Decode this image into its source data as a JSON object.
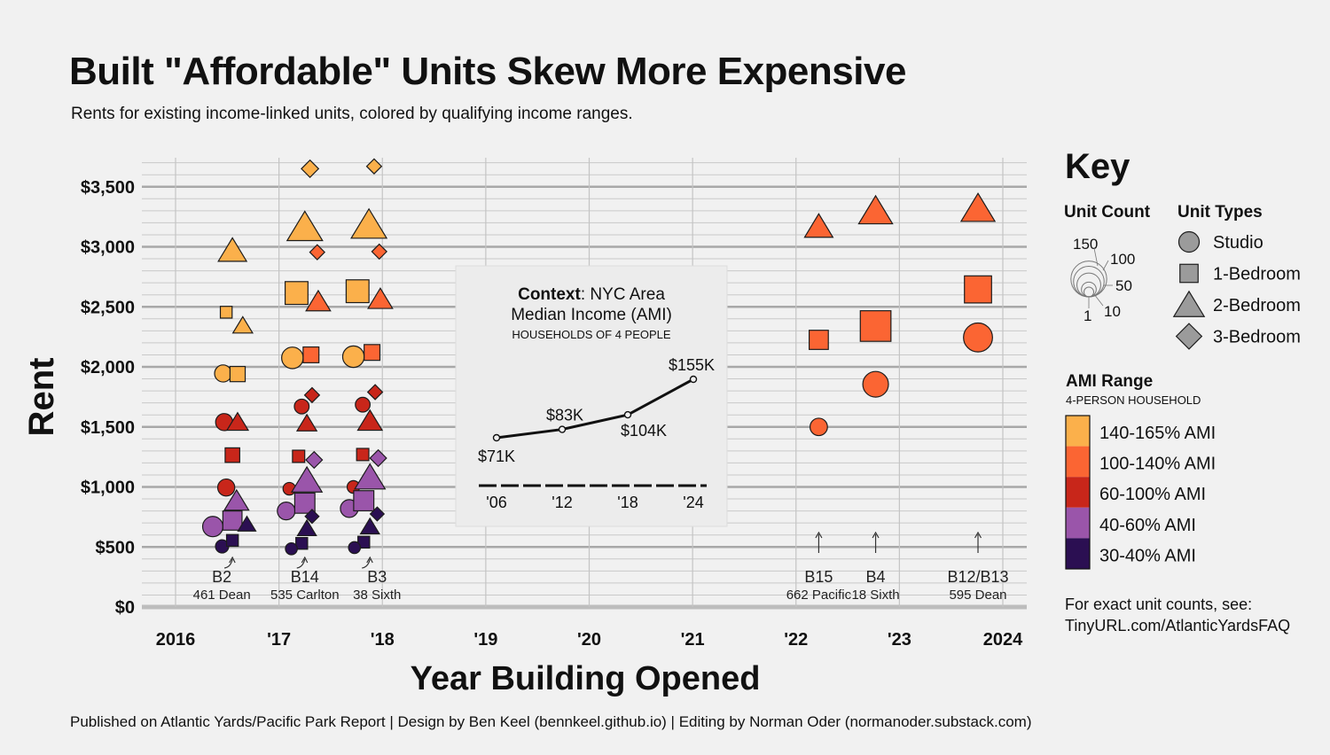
{
  "title": "Built \"Affordable\" Units Skew More Expensive",
  "subtitle": "Rents for existing income-linked units, colored by qualifying income ranges.",
  "footer": "Published on Atlantic Yards/Pacific Park Report | Design by Ben Keel (bennkeel.github.io) | Editing by Norman Oder (normanoder.substack.com)",
  "colors": {
    "ami_140_165": "#fbb04b",
    "ami_100_140": "#fb6533",
    "ami_60_100": "#c8261a",
    "ami_40_60": "#9a55aa",
    "ami_30_40": "#2b0f52",
    "background": "#f1f1f1",
    "inset_background": "#eeeeee"
  },
  "chart_data": {
    "type": "scatter",
    "xlabel": "Year Building Opened",
    "ylabel": "Rent",
    "x_ticks": [
      "2016",
      "'17",
      "'18",
      "'19",
      "'20",
      "'21",
      "'22",
      "'23",
      "2024"
    ],
    "xlim": [
      2016.0,
      2024.0
    ],
    "y_ticks": [
      "$0",
      "$500",
      "$1,000",
      "$1,500",
      "$2,000",
      "$2,500",
      "$3,000",
      "$3,500"
    ],
    "y_tick_values": [
      0,
      500,
      1000,
      1500,
      2000,
      2500,
      3000,
      3500
    ],
    "ylim": [
      0,
      3500
    ],
    "grid": true,
    "buildings": [
      {
        "code": "B2",
        "address": "461 Dean",
        "x": 2016.55
      },
      {
        "code": "B14",
        "address": "535 Carlton",
        "x": 2017.25
      },
      {
        "code": "B3",
        "address": "38 Sixth",
        "x": 2017.88
      },
      {
        "code": "B15",
        "address": "662 Pacific",
        "x": 2022.22
      },
      {
        "code": "B4",
        "address": "18 Sixth",
        "x": 2022.77
      },
      {
        "code": "B12/B13",
        "address": "595 Dean",
        "x": 2023.76
      }
    ],
    "points": [
      {
        "building": "B2",
        "x": 2016.55,
        "y": 2970,
        "type": "2-Bedroom",
        "ami": "140-165% AMI",
        "units": 20
      },
      {
        "building": "B2",
        "x": 2016.49,
        "y": 2455,
        "type": "1-Bedroom",
        "ami": "140-165% AMI",
        "units": 5
      },
      {
        "building": "B2",
        "x": 2016.65,
        "y": 2345,
        "type": "2-Bedroom",
        "ami": "140-165% AMI",
        "units": 5
      },
      {
        "building": "B2",
        "x": 2016.46,
        "y": 1945,
        "type": "Studio",
        "ami": "140-165% AMI",
        "units": 14
      },
      {
        "building": "B2",
        "x": 2016.6,
        "y": 1940,
        "type": "1-Bedroom",
        "ami": "140-165% AMI",
        "units": 14
      },
      {
        "building": "B2",
        "x": 2016.47,
        "y": 1540,
        "type": "Studio",
        "ami": "60-100% AMI",
        "units": 14
      },
      {
        "building": "B2",
        "x": 2016.6,
        "y": 1540,
        "type": "2-Bedroom",
        "ami": "60-100% AMI",
        "units": 7
      },
      {
        "building": "B2",
        "x": 2016.55,
        "y": 1265,
        "type": "1-Bedroom",
        "ami": "60-100% AMI",
        "units": 12
      },
      {
        "building": "B2",
        "x": 2016.49,
        "y": 995,
        "type": "Studio",
        "ami": "60-100% AMI",
        "units": 14
      },
      {
        "building": "B2",
        "x": 2016.59,
        "y": 885,
        "type": "2-Bedroom",
        "ami": "40-60% AMI",
        "units": 12
      },
      {
        "building": "B2",
        "x": 2016.36,
        "y": 670,
        "type": "Studio",
        "ami": "40-60% AMI",
        "units": 25
      },
      {
        "building": "B2",
        "x": 2016.55,
        "y": 720,
        "type": "1-Bedroom",
        "ami": "40-60% AMI",
        "units": 30
      },
      {
        "building": "B2",
        "x": 2016.69,
        "y": 690,
        "type": "2-Bedroom",
        "ami": "30-40% AMI",
        "units": 3
      },
      {
        "building": "B2",
        "x": 2016.45,
        "y": 505,
        "type": "Studio",
        "ami": "30-40% AMI",
        "units": 5
      },
      {
        "building": "B2",
        "x": 2016.55,
        "y": 555,
        "type": "1-Bedroom",
        "ami": "30-40% AMI",
        "units": 5
      },
      {
        "building": "B14",
        "x": 2017.3,
        "y": 3650,
        "type": "3-Bedroom",
        "ami": "140-165% AMI",
        "units": 6
      },
      {
        "building": "B14",
        "x": 2017.25,
        "y": 3165,
        "type": "2-Bedroom",
        "ami": "140-165% AMI",
        "units": 40
      },
      {
        "building": "B14",
        "x": 2017.37,
        "y": 2955,
        "type": "3-Bedroom",
        "ami": "100-140% AMI",
        "units": 3
      },
      {
        "building": "B14",
        "x": 2017.17,
        "y": 2615,
        "type": "1-Bedroom",
        "ami": "140-165% AMI",
        "units": 50
      },
      {
        "building": "B14",
        "x": 2017.38,
        "y": 2545,
        "type": "2-Bedroom",
        "ami": "100-140% AMI",
        "units": 12
      },
      {
        "building": "B14",
        "x": 2017.13,
        "y": 2075,
        "type": "Studio",
        "ami": "140-165% AMI",
        "units": 30
      },
      {
        "building": "B14",
        "x": 2017.31,
        "y": 2100,
        "type": "1-Bedroom",
        "ami": "100-140% AMI",
        "units": 16
      },
      {
        "building": "B14",
        "x": 2017.32,
        "y": 1765,
        "type": "3-Bedroom",
        "ami": "60-100% AMI",
        "units": 3
      },
      {
        "building": "B14",
        "x": 2017.22,
        "y": 1670,
        "type": "Studio",
        "ami": "60-100% AMI",
        "units": 8
      },
      {
        "building": "B14",
        "x": 2017.27,
        "y": 1530,
        "type": "2-Bedroom",
        "ami": "60-100% AMI",
        "units": 5
      },
      {
        "building": "B14",
        "x": 2017.19,
        "y": 1255,
        "type": "1-Bedroom",
        "ami": "60-100% AMI",
        "units": 6
      },
      {
        "building": "B14",
        "x": 2017.34,
        "y": 1225,
        "type": "3-Bedroom",
        "ami": "40-60% AMI",
        "units": 5
      },
      {
        "building": "B14",
        "x": 2017.1,
        "y": 985,
        "type": "Studio",
        "ami": "60-100% AMI",
        "units": 4
      },
      {
        "building": "B14",
        "x": 2017.27,
        "y": 1055,
        "type": "2-Bedroom",
        "ami": "40-60% AMI",
        "units": 25
      },
      {
        "building": "B14",
        "x": 2017.07,
        "y": 800,
        "type": "Studio",
        "ami": "40-60% AMI",
        "units": 16
      },
      {
        "building": "B14",
        "x": 2017.25,
        "y": 865,
        "type": "1-Bedroom",
        "ami": "40-60% AMI",
        "units": 35
      },
      {
        "building": "B14",
        "x": 2017.32,
        "y": 755,
        "type": "3-Bedroom",
        "ami": "30-40% AMI",
        "units": 2
      },
      {
        "building": "B14",
        "x": 2017.27,
        "y": 655,
        "type": "2-Bedroom",
        "ami": "30-40% AMI",
        "units": 4
      },
      {
        "building": "B14",
        "x": 2017.22,
        "y": 530,
        "type": "1-Bedroom",
        "ami": "30-40% AMI",
        "units": 5
      },
      {
        "building": "B14",
        "x": 2017.12,
        "y": 485,
        "type": "Studio",
        "ami": "30-40% AMI",
        "units": 3
      },
      {
        "building": "B3",
        "x": 2017.92,
        "y": 3670,
        "type": "3-Bedroom",
        "ami": "140-165% AMI",
        "units": 3
      },
      {
        "building": "B3",
        "x": 2017.87,
        "y": 3185,
        "type": "2-Bedroom",
        "ami": "140-165% AMI",
        "units": 40
      },
      {
        "building": "B3",
        "x": 2017.97,
        "y": 2960,
        "type": "3-Bedroom",
        "ami": "100-140% AMI",
        "units": 3
      },
      {
        "building": "B3",
        "x": 2017.76,
        "y": 2630,
        "type": "1-Bedroom",
        "ami": "140-165% AMI",
        "units": 50
      },
      {
        "building": "B3",
        "x": 2017.98,
        "y": 2565,
        "type": "2-Bedroom",
        "ami": "100-140% AMI",
        "units": 12
      },
      {
        "building": "B3",
        "x": 2017.72,
        "y": 2085,
        "type": "Studio",
        "ami": "140-165% AMI",
        "units": 30
      },
      {
        "building": "B3",
        "x": 2017.9,
        "y": 2120,
        "type": "1-Bedroom",
        "ami": "100-140% AMI",
        "units": 16
      },
      {
        "building": "B3",
        "x": 2017.93,
        "y": 1790,
        "type": "3-Bedroom",
        "ami": "60-100% AMI",
        "units": 3
      },
      {
        "building": "B3",
        "x": 2017.81,
        "y": 1685,
        "type": "Studio",
        "ami": "60-100% AMI",
        "units": 8
      },
      {
        "building": "B3",
        "x": 2017.88,
        "y": 1550,
        "type": "2-Bedroom",
        "ami": "60-100% AMI",
        "units": 12
      },
      {
        "building": "B3",
        "x": 2017.81,
        "y": 1270,
        "type": "1-Bedroom",
        "ami": "60-100% AMI",
        "units": 6
      },
      {
        "building": "B3",
        "x": 2017.96,
        "y": 1240,
        "type": "3-Bedroom",
        "ami": "40-60% AMI",
        "units": 5
      },
      {
        "building": "B3",
        "x": 2017.72,
        "y": 1000,
        "type": "Studio",
        "ami": "60-100% AMI",
        "units": 4
      },
      {
        "building": "B3",
        "x": 2017.88,
        "y": 1080,
        "type": "2-Bedroom",
        "ami": "40-60% AMI",
        "units": 25
      },
      {
        "building": "B3",
        "x": 2017.68,
        "y": 820,
        "type": "Studio",
        "ami": "40-60% AMI",
        "units": 16
      },
      {
        "building": "B3",
        "x": 2017.82,
        "y": 885,
        "type": "1-Bedroom",
        "ami": "40-60% AMI",
        "units": 35
      },
      {
        "building": "B3",
        "x": 2017.95,
        "y": 775,
        "type": "3-Bedroom",
        "ami": "30-40% AMI",
        "units": 2
      },
      {
        "building": "B3",
        "x": 2017.88,
        "y": 670,
        "type": "2-Bedroom",
        "ami": "30-40% AMI",
        "units": 4
      },
      {
        "building": "B3",
        "x": 2017.82,
        "y": 540,
        "type": "1-Bedroom",
        "ami": "30-40% AMI",
        "units": 5
      },
      {
        "building": "B3",
        "x": 2017.73,
        "y": 495,
        "type": "Studio",
        "ami": "30-40% AMI",
        "units": 3
      },
      {
        "building": "B15",
        "x": 2022.22,
        "y": 3170,
        "type": "2-Bedroom",
        "ami": "100-140% AMI",
        "units": 20
      },
      {
        "building": "B15",
        "x": 2022.22,
        "y": 2225,
        "type": "1-Bedroom",
        "ami": "100-140% AMI",
        "units": 30
      },
      {
        "building": "B15",
        "x": 2022.22,
        "y": 1500,
        "type": "Studio",
        "ami": "100-140% AMI",
        "units": 15
      },
      {
        "building": "B4",
        "x": 2022.77,
        "y": 3300,
        "type": "2-Bedroom",
        "ami": "100-140% AMI",
        "units": 35
      },
      {
        "building": "B4",
        "x": 2022.77,
        "y": 2340,
        "type": "1-Bedroom",
        "ami": "100-140% AMI",
        "units": 110
      },
      {
        "building": "B4",
        "x": 2022.77,
        "y": 1855,
        "type": "Studio",
        "ami": "100-140% AMI",
        "units": 50
      },
      {
        "building": "B12/B13",
        "x": 2023.76,
        "y": 3320,
        "type": "2-Bedroom",
        "ami": "100-140% AMI",
        "units": 35
      },
      {
        "building": "B12/B13",
        "x": 2023.76,
        "y": 2645,
        "type": "1-Bedroom",
        "ami": "100-140% AMI",
        "units": 80
      },
      {
        "building": "B12/B13",
        "x": 2023.76,
        "y": 2245,
        "type": "Studio",
        "ami": "100-140% AMI",
        "units": 70
      }
    ],
    "inset": {
      "title_bold": "Context",
      "title_rest": ": NYC Area",
      "title_line2": "Median Income (AMI)",
      "subtitle": "HOUSEHOLDS OF 4 PEOPLE",
      "type": "line",
      "x_ticks": [
        "'06",
        "'12",
        "'18",
        "'24"
      ],
      "points": [
        {
          "year": 2006,
          "value": 71,
          "label": "$71K"
        },
        {
          "year": 2012,
          "value": 83,
          "label": "$83K"
        },
        {
          "year": 2018,
          "value": 104,
          "label": "$104K"
        },
        {
          "year": 2024,
          "value": 155,
          "label": "$155K"
        }
      ]
    }
  },
  "key": {
    "title": "Key",
    "unit_count_title": "Unit Count",
    "unit_count_labels": [
      "150",
      "100",
      "50",
      "10",
      "1"
    ],
    "unit_types_title": "Unit Types",
    "unit_types": [
      "Studio",
      "1-Bedroom",
      "2-Bedroom",
      "3-Bedroom"
    ],
    "ami_title": "AMI Range",
    "ami_subtitle": "4-PERSON HOUSEHOLD",
    "ami_ranges": [
      "140-165% AMI",
      "100-140% AMI",
      "60-100% AMI",
      "40-60% AMI",
      "30-40% AMI"
    ],
    "note_line1": "For exact unit counts, see:",
    "note_line2": "TinyURL.com/AtlanticYardsFAQ"
  }
}
